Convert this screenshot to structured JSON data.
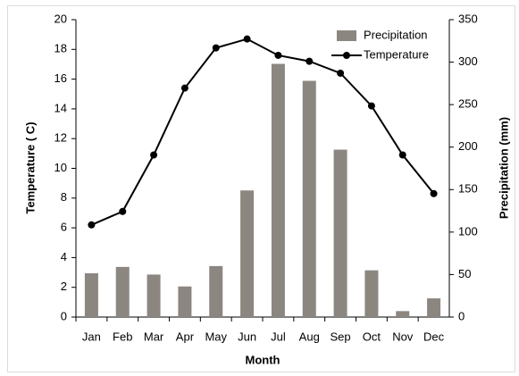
{
  "chart_data": {
    "type": "combo",
    "x_label": "Month",
    "y_label": "Temperature ( C)",
    "y2_label": "Precipitation (mm)",
    "categories": [
      "Jan",
      "Feb",
      "Mar",
      "Apr",
      "May",
      "Jun",
      "Jul",
      "Aug",
      "Sep",
      "Oct",
      "Nov",
      "Dec"
    ],
    "series": [
      {
        "name": "Precipitation",
        "type": "bar",
        "axis": "y2",
        "color": "#8c8681",
        "values": [
          51.5,
          59,
          50,
          36,
          60,
          149,
          298,
          278,
          197,
          55,
          7,
          22
        ]
      },
      {
        "name": "Temperature",
        "type": "line",
        "axis": "y",
        "color": "#000000",
        "values": [
          6.2,
          7.1,
          10.9,
          15.4,
          18.1,
          18.7,
          17.6,
          17.2,
          16.4,
          14.2,
          10.9,
          8.3
        ]
      }
    ],
    "ylim": [
      0,
      20
    ],
    "yticks": [
      0,
      2,
      4,
      6,
      8,
      10,
      12,
      14,
      16,
      18,
      20
    ],
    "y2lim": [
      0,
      350
    ],
    "y2ticks": [
      0,
      50,
      100,
      150,
      200,
      250,
      300,
      350
    ],
    "legend": "upper right",
    "grid": false
  }
}
